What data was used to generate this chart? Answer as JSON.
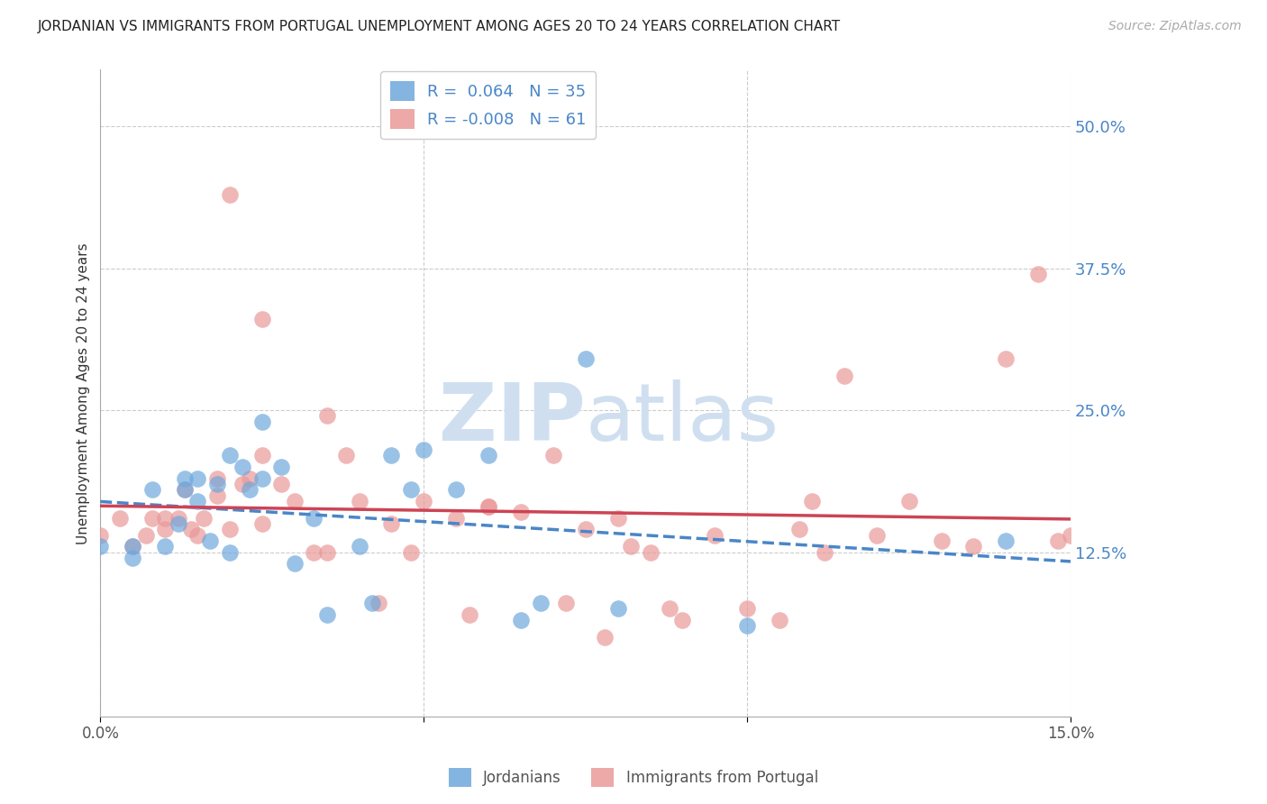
{
  "title": "JORDANIAN VS IMMIGRANTS FROM PORTUGAL UNEMPLOYMENT AMONG AGES 20 TO 24 YEARS CORRELATION CHART",
  "source": "Source: ZipAtlas.com",
  "ylabel": "Unemployment Among Ages 20 to 24 years",
  "ytick_labels": [
    "50.0%",
    "37.5%",
    "25.0%",
    "12.5%"
  ],
  "ytick_values": [
    0.5,
    0.375,
    0.25,
    0.125
  ],
  "xlim": [
    0.0,
    0.15
  ],
  "ylim": [
    -0.02,
    0.55
  ],
  "jordanians_R": 0.064,
  "jordanians_N": 35,
  "portugal_R": -0.008,
  "portugal_N": 61,
  "jordanians_color": "#6fa8dc",
  "portugal_color": "#ea9999",
  "jordanians_line_color": "#4a86c8",
  "portugal_line_color": "#cc4455",
  "watermark_color": "#d0dff0",
  "jordanians_x": [
    0.0,
    0.005,
    0.005,
    0.008,
    0.01,
    0.012,
    0.013,
    0.013,
    0.015,
    0.015,
    0.017,
    0.018,
    0.02,
    0.02,
    0.022,
    0.023,
    0.025,
    0.025,
    0.028,
    0.03,
    0.033,
    0.035,
    0.04,
    0.042,
    0.045,
    0.048,
    0.05,
    0.055,
    0.06,
    0.065,
    0.068,
    0.075,
    0.08,
    0.1,
    0.14
  ],
  "jordanians_y": [
    0.13,
    0.12,
    0.13,
    0.18,
    0.13,
    0.15,
    0.19,
    0.18,
    0.17,
    0.19,
    0.135,
    0.185,
    0.21,
    0.125,
    0.2,
    0.18,
    0.24,
    0.19,
    0.2,
    0.115,
    0.155,
    0.07,
    0.13,
    0.08,
    0.21,
    0.18,
    0.215,
    0.18,
    0.21,
    0.065,
    0.08,
    0.295,
    0.075,
    0.06,
    0.135
  ],
  "portugal_x": [
    0.0,
    0.003,
    0.005,
    0.007,
    0.008,
    0.01,
    0.01,
    0.012,
    0.013,
    0.014,
    0.015,
    0.016,
    0.018,
    0.018,
    0.02,
    0.022,
    0.023,
    0.025,
    0.025,
    0.028,
    0.03,
    0.033,
    0.035,
    0.038,
    0.04,
    0.043,
    0.045,
    0.048,
    0.05,
    0.055,
    0.057,
    0.06,
    0.065,
    0.07,
    0.072,
    0.075,
    0.078,
    0.08,
    0.082,
    0.085,
    0.088,
    0.09,
    0.095,
    0.1,
    0.105,
    0.108,
    0.11,
    0.112,
    0.115,
    0.12,
    0.125,
    0.13,
    0.135,
    0.14,
    0.145,
    0.148,
    0.15,
    0.02,
    0.035,
    0.025,
    0.06
  ],
  "portugal_y": [
    0.14,
    0.155,
    0.13,
    0.14,
    0.155,
    0.155,
    0.145,
    0.155,
    0.18,
    0.145,
    0.14,
    0.155,
    0.175,
    0.19,
    0.145,
    0.185,
    0.19,
    0.21,
    0.15,
    0.185,
    0.17,
    0.125,
    0.125,
    0.21,
    0.17,
    0.08,
    0.15,
    0.125,
    0.17,
    0.155,
    0.07,
    0.165,
    0.16,
    0.21,
    0.08,
    0.145,
    0.05,
    0.155,
    0.13,
    0.125,
    0.075,
    0.065,
    0.14,
    0.075,
    0.065,
    0.145,
    0.17,
    0.125,
    0.28,
    0.14,
    0.17,
    0.135,
    0.13,
    0.295,
    0.37,
    0.135,
    0.14,
    0.44,
    0.245,
    0.33,
    0.165
  ],
  "background_color": "#ffffff",
  "grid_color": "#cccccc"
}
